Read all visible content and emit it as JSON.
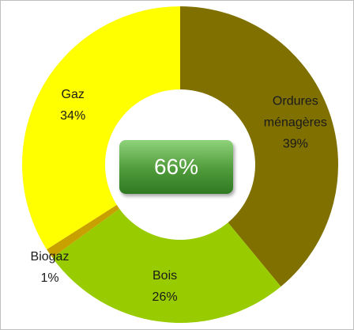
{
  "chart_data": {
    "type": "donut",
    "categories": [
      "Ordures ménagères",
      "Bois",
      "Biogaz",
      "Gaz"
    ],
    "values": [
      39,
      26,
      1,
      34
    ],
    "value_labels": [
      "39%",
      "26%",
      "1%",
      "34%"
    ],
    "colors": [
      "#7f7000",
      "#99cc00",
      "#c8a000",
      "#ffff00"
    ],
    "center_label": "66%"
  }
}
